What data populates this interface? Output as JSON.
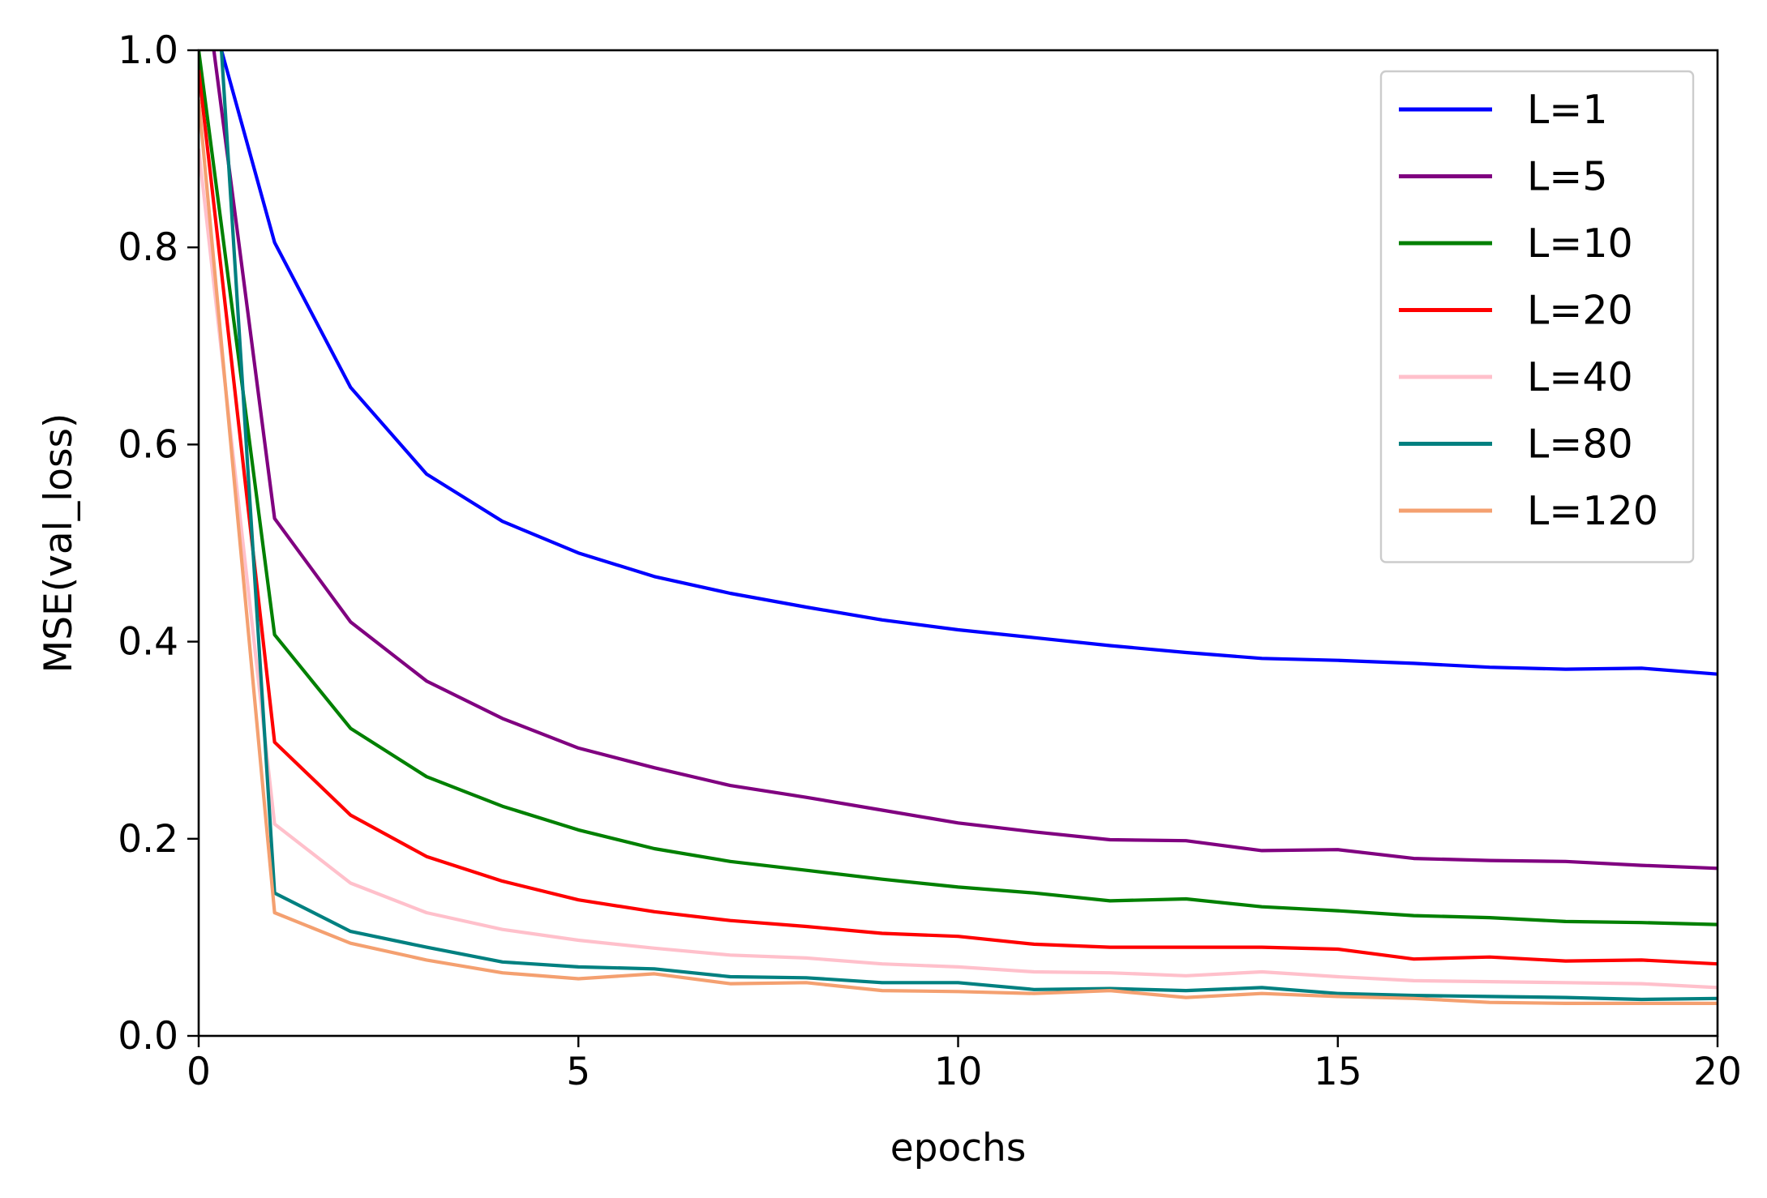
{
  "chart_data": {
    "type": "line",
    "xlabel": "epochs",
    "ylabel": "MSE(val_loss)",
    "xlim": [
      0,
      20
    ],
    "ylim": [
      0.0,
      1.0
    ],
    "x_ticks": [
      0,
      5,
      10,
      15,
      20
    ],
    "x_tick_labels": [
      "0",
      "5",
      "10",
      "15",
      "20"
    ],
    "y_ticks": [
      0.0,
      0.2,
      0.4,
      0.6,
      0.8,
      1.0
    ],
    "y_tick_labels": [
      "0.0",
      "0.2",
      "0.4",
      "0.6",
      "0.8",
      "1.0"
    ],
    "grid": false,
    "legend_position": "top-right",
    "series": [
      {
        "name": "L=1",
        "color": "#0000ff",
        "points": [
          [
            0.3,
            1.0
          ],
          [
            1,
            0.805
          ],
          [
            2,
            0.658
          ],
          [
            3,
            0.57
          ],
          [
            4,
            0.522
          ],
          [
            5,
            0.49
          ],
          [
            6,
            0.466
          ],
          [
            7,
            0.449
          ],
          [
            8,
            0.435
          ],
          [
            9,
            0.422
          ],
          [
            10,
            0.412
          ],
          [
            11,
            0.404
          ],
          [
            12,
            0.396
          ],
          [
            13,
            0.389
          ],
          [
            14,
            0.383
          ],
          [
            15,
            0.381
          ],
          [
            16,
            0.378
          ],
          [
            17,
            0.374
          ],
          [
            18,
            0.372
          ],
          [
            19,
            0.373
          ],
          [
            20,
            0.367
          ]
        ]
      },
      {
        "name": "L=5",
        "color": "#800080",
        "points": [
          [
            0.2,
            1.0
          ],
          [
            1,
            0.525
          ],
          [
            2,
            0.42
          ],
          [
            3,
            0.36
          ],
          [
            4,
            0.322
          ],
          [
            5,
            0.292
          ],
          [
            6,
            0.272
          ],
          [
            7,
            0.254
          ],
          [
            8,
            0.242
          ],
          [
            9,
            0.229
          ],
          [
            10,
            0.216
          ],
          [
            11,
            0.207
          ],
          [
            12,
            0.199
          ],
          [
            13,
            0.198
          ],
          [
            14,
            0.188
          ],
          [
            15,
            0.189
          ],
          [
            16,
            0.18
          ],
          [
            17,
            0.178
          ],
          [
            18,
            0.177
          ],
          [
            19,
            0.173
          ],
          [
            20,
            0.17
          ]
        ]
      },
      {
        "name": "L=10",
        "color": "#008000",
        "points": [
          [
            0,
            1.0
          ],
          [
            1,
            0.407
          ],
          [
            2,
            0.312
          ],
          [
            3,
            0.263
          ],
          [
            4,
            0.233
          ],
          [
            5,
            0.209
          ],
          [
            6,
            0.19
          ],
          [
            7,
            0.177
          ],
          [
            8,
            0.168
          ],
          [
            9,
            0.159
          ],
          [
            10,
            0.151
          ],
          [
            11,
            0.145
          ],
          [
            12,
            0.137
          ],
          [
            13,
            0.139
          ],
          [
            14,
            0.131
          ],
          [
            15,
            0.127
          ],
          [
            16,
            0.122
          ],
          [
            17,
            0.12
          ],
          [
            18,
            0.116
          ],
          [
            19,
            0.115
          ],
          [
            20,
            0.113
          ]
        ]
      },
      {
        "name": "L=20",
        "color": "#ff0000",
        "points": [
          [
            0,
            0.98
          ],
          [
            1,
            0.298
          ],
          [
            2,
            0.224
          ],
          [
            3,
            0.182
          ],
          [
            4,
            0.157
          ],
          [
            5,
            0.138
          ],
          [
            6,
            0.126
          ],
          [
            7,
            0.117
          ],
          [
            8,
            0.111
          ],
          [
            9,
            0.104
          ],
          [
            10,
            0.101
          ],
          [
            11,
            0.093
          ],
          [
            12,
            0.09
          ],
          [
            13,
            0.09
          ],
          [
            14,
            0.09
          ],
          [
            15,
            0.088
          ],
          [
            16,
            0.078
          ],
          [
            17,
            0.08
          ],
          [
            18,
            0.076
          ],
          [
            19,
            0.077
          ],
          [
            20,
            0.073
          ]
        ]
      },
      {
        "name": "L=40",
        "color": "#ffc0cb",
        "points": [
          [
            0,
            0.9
          ],
          [
            1,
            0.215
          ],
          [
            2,
            0.155
          ],
          [
            3,
            0.125
          ],
          [
            4,
            0.108
          ],
          [
            5,
            0.097
          ],
          [
            6,
            0.089
          ],
          [
            7,
            0.082
          ],
          [
            8,
            0.079
          ],
          [
            9,
            0.073
          ],
          [
            10,
            0.07
          ],
          [
            11,
            0.065
          ],
          [
            12,
            0.064
          ],
          [
            13,
            0.061
          ],
          [
            14,
            0.065
          ],
          [
            15,
            0.06
          ],
          [
            16,
            0.056
          ],
          [
            17,
            0.055
          ],
          [
            18,
            0.054
          ],
          [
            19,
            0.053
          ],
          [
            20,
            0.049
          ]
        ]
      },
      {
        "name": "L=80",
        "color": "#008080",
        "points": [
          [
            0.3,
            1.0
          ],
          [
            1,
            0.145
          ],
          [
            2,
            0.106
          ],
          [
            3,
            0.09
          ],
          [
            4,
            0.075
          ],
          [
            5,
            0.07
          ],
          [
            6,
            0.068
          ],
          [
            7,
            0.06
          ],
          [
            8,
            0.059
          ],
          [
            9,
            0.054
          ],
          [
            10,
            0.054
          ],
          [
            11,
            0.047
          ],
          [
            12,
            0.048
          ],
          [
            13,
            0.046
          ],
          [
            14,
            0.049
          ],
          [
            15,
            0.043
          ],
          [
            16,
            0.041
          ],
          [
            17,
            0.04
          ],
          [
            18,
            0.039
          ],
          [
            19,
            0.037
          ],
          [
            20,
            0.038
          ]
        ]
      },
      {
        "name": "L=120",
        "color": "#f4a070",
        "points": [
          [
            0,
            0.95
          ],
          [
            1,
            0.125
          ],
          [
            2,
            0.094
          ],
          [
            3,
            0.077
          ],
          [
            4,
            0.064
          ],
          [
            5,
            0.058
          ],
          [
            6,
            0.063
          ],
          [
            7,
            0.053
          ],
          [
            8,
            0.054
          ],
          [
            9,
            0.046
          ],
          [
            10,
            0.045
          ],
          [
            11,
            0.043
          ],
          [
            12,
            0.046
          ],
          [
            13,
            0.039
          ],
          [
            14,
            0.043
          ],
          [
            15,
            0.04
          ],
          [
            16,
            0.038
          ],
          [
            17,
            0.034
          ],
          [
            18,
            0.033
          ],
          [
            19,
            0.033
          ],
          [
            20,
            0.033
          ]
        ]
      }
    ]
  }
}
